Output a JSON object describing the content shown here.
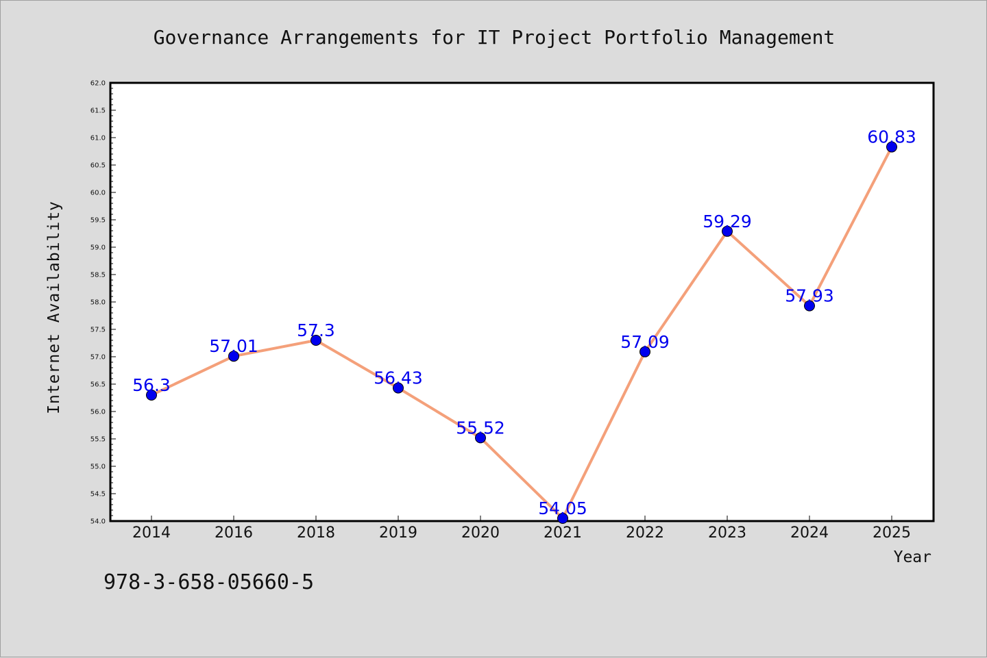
{
  "footnote": "978-3-658-05660-5",
  "colors": {
    "line": "#f4a07a",
    "marker": "#0000ee",
    "label": "#0000ee",
    "plot_bg": "#ffffff",
    "page_bg": "#dcdcdc"
  },
  "chart_data": {
    "type": "line",
    "title": "Governance Arrangements for IT Project Portfolio Management",
    "xlabel": "Year",
    "ylabel": "Internet Availability",
    "categories": [
      "2014",
      "2016",
      "2018",
      "2019",
      "2020",
      "2021",
      "2022",
      "2023",
      "2024",
      "2025"
    ],
    "series": [
      {
        "values": [
          56.3,
          57.01,
          57.3,
          56.43,
          55.52,
          54.05,
          57.09,
          59.29,
          57.93,
          60.83
        ],
        "labels": [
          "56.3",
          "57.01",
          "57.3",
          "56.43",
          "55.52",
          "54.05",
          "57.09",
          "59.29",
          "57.93",
          "60.83"
        ]
      }
    ],
    "ylim": [
      54.0,
      62.0
    ],
    "ytick_step": 0.5,
    "grid": false,
    "legend": "none"
  }
}
